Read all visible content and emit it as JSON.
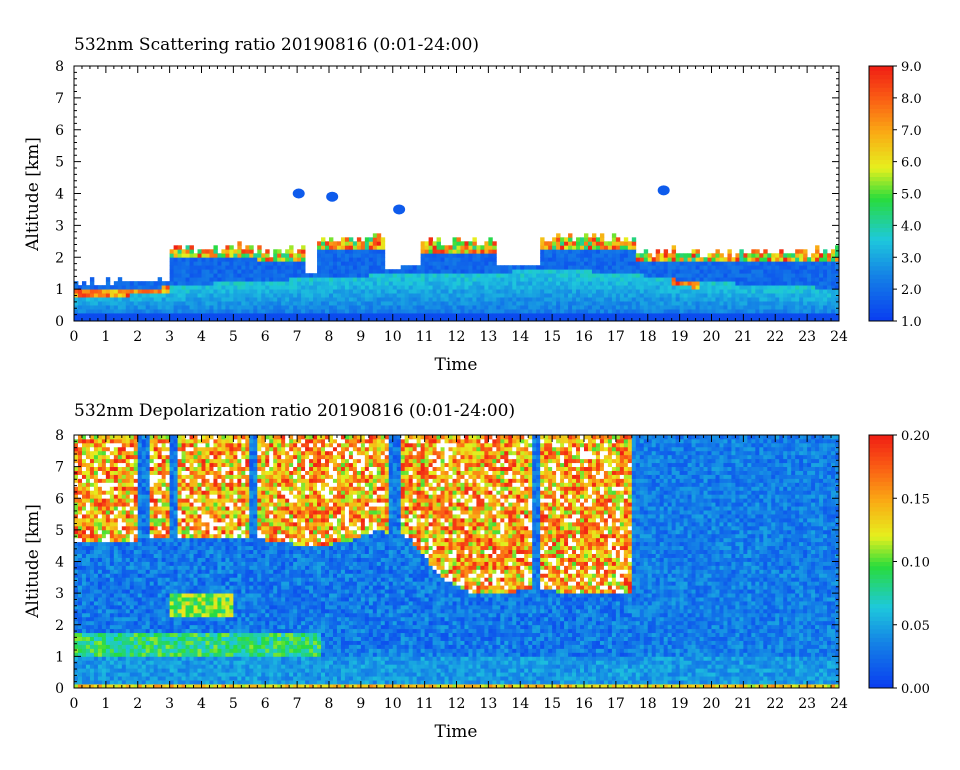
{
  "chart_data": [
    {
      "type": "heatmap",
      "title": "532nm Scattering ratio  20190816 (0:01-24:00)",
      "xlabel": "Time",
      "ylabel": "Altitude [km]",
      "xlim": [
        0,
        24
      ],
      "ylim": [
        0,
        8
      ],
      "x_ticks": [
        "0",
        "1",
        "2",
        "3",
        "4",
        "5",
        "6",
        "7",
        "8",
        "9",
        "10",
        "11",
        "12",
        "13",
        "14",
        "15",
        "16",
        "17",
        "18",
        "19",
        "20",
        "21",
        "22",
        "23",
        "24"
      ],
      "y_ticks": [
        "0",
        "1",
        "2",
        "3",
        "4",
        "5",
        "6",
        "7",
        "8"
      ],
      "colorbar": {
        "min": 1.0,
        "max": 9.0,
        "ticks": [
          "1.0",
          "2.0",
          "3.0",
          "4.0",
          "5.0",
          "6.0",
          "7.0",
          "8.0",
          "9.0"
        ]
      },
      "layers": {
        "boundary_layer_top_km": [
          0.95,
          1.0,
          1.05,
          1.1,
          1.2,
          1.25,
          1.3,
          1.35,
          1.4,
          1.45,
          1.5,
          1.5,
          1.5,
          1.55,
          1.6,
          1.6,
          1.55,
          1.5,
          1.35,
          1.25,
          1.2,
          1.15,
          1.1,
          1.05
        ],
        "cloud_layer_km": [
          {
            "start": 3.0,
            "end": 5.8,
            "bottom": 1.6,
            "top": 2.3
          },
          {
            "start": 5.8,
            "end": 7.3,
            "bottom": 1.6,
            "top": 2.2
          },
          {
            "start": 7.6,
            "end": 9.8,
            "bottom": 1.5,
            "top": 2.6
          },
          {
            "start": 10.9,
            "end": 13.2,
            "bottom": 1.3,
            "top": 2.5
          },
          {
            "start": 14.6,
            "end": 17.6,
            "bottom": 1.3,
            "top": 2.6
          },
          {
            "start": 17.6,
            "end": 24.0,
            "bottom": 0.3,
            "top": 2.2
          }
        ],
        "isolated_clouds": [
          {
            "time": 7.05,
            "altitude": 4.0
          },
          {
            "time": 8.1,
            "altitude": 3.9
          },
          {
            "time": 10.2,
            "altitude": 3.5
          },
          {
            "time": 18.5,
            "altitude": 4.1
          }
        ]
      }
    },
    {
      "type": "heatmap",
      "title": "532nm Depolarization ratio  20190816 (0:01-24:00)",
      "xlabel": "Time",
      "ylabel": "Altitude [km]",
      "xlim": [
        0,
        24
      ],
      "ylim": [
        0,
        8
      ],
      "x_ticks": [
        "0",
        "1",
        "2",
        "3",
        "4",
        "5",
        "6",
        "7",
        "8",
        "9",
        "10",
        "11",
        "12",
        "13",
        "14",
        "15",
        "16",
        "17",
        "18",
        "19",
        "20",
        "21",
        "22",
        "23",
        "24"
      ],
      "y_ticks": [
        "0",
        "1",
        "2",
        "3",
        "4",
        "5",
        "6",
        "7",
        "8"
      ],
      "colorbar": {
        "min": 0.0,
        "max": 0.2,
        "ticks": [
          "0.00",
          "0.05",
          "0.10",
          "0.15",
          "0.20"
        ]
      },
      "layers": {
        "noisy_upper_region_top_km": 8.0,
        "noisy_upper_region_bottom_km": [
          4.6,
          4.6,
          4.7,
          4.7,
          4.7,
          4.8,
          4.6,
          4.5,
          4.6,
          5.0,
          4.8,
          3.5,
          3.0,
          3.0,
          3.2,
          3.0,
          3.0,
          3.0,
          8.0,
          8.0,
          8.0,
          8.0,
          8.0,
          8.0
        ],
        "dust_layer_km": {
          "start": 3.0,
          "end": 5.0,
          "bottom": 2.2,
          "top": 3.0
        }
      }
    }
  ]
}
